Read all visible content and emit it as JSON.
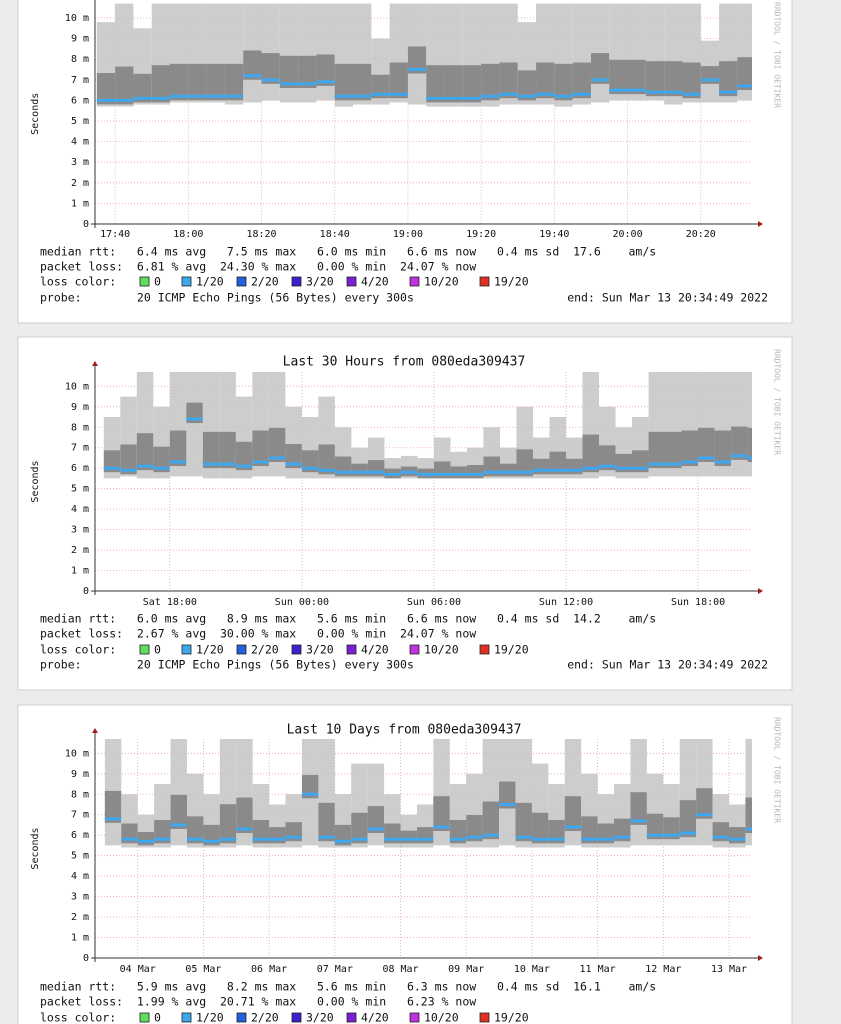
{
  "loss_legend": {
    "label": "loss color:",
    "items": [
      {
        "label": "0",
        "color": "#5ee05e"
      },
      {
        "label": "1/20",
        "color": "#3da8f0"
      },
      {
        "label": "2/20",
        "color": "#2060e0"
      },
      {
        "label": "3/20",
        "color": "#3a20d0"
      },
      {
        "label": "4/20",
        "color": "#7a20d0"
      },
      {
        "label": "10/20",
        "color": "#c030e0"
      },
      {
        "label": "19/20",
        "color": "#e03020"
      }
    ]
  },
  "graphs": [
    {
      "y_label": "Seconds",
      "watermark": "RRDTOOL / TOBI OETIKER",
      "median_color": "#3da8f0",
      "ylim": [
        0,
        10.7
      ],
      "yticks": [
        0,
        {
          "value": 1,
          "label": "1 m"
        },
        {
          "value": 2,
          "label": "2 m"
        },
        {
          "value": 3,
          "label": "3 m"
        },
        {
          "value": 4,
          "label": "4 m"
        },
        {
          "value": 5,
          "label": "5 m"
        },
        {
          "value": 6,
          "label": "6 m"
        },
        {
          "value": 7,
          "label": "7 m"
        },
        {
          "value": 8,
          "label": "8 m"
        },
        {
          "value": 9,
          "label": "9 m"
        },
        {
          "value": 10,
          "label": "10 m"
        }
      ],
      "xlim": [
        34.5,
        214
      ],
      "xticks": [
        {
          "value": 40,
          "label": "17:40"
        },
        {
          "value": 60,
          "label": "18:00"
        },
        {
          "value": 80,
          "label": "18:20"
        },
        {
          "value": 100,
          "label": "18:40"
        },
        {
          "value": 120,
          "label": "19:00"
        },
        {
          "value": 140,
          "label": "19:20"
        },
        {
          "value": 160,
          "label": "19:40"
        },
        {
          "value": 180,
          "label": "20:00"
        },
        {
          "value": 200,
          "label": "20:20"
        }
      ],
      "x": [
        35,
        40,
        45,
        50,
        55,
        60,
        65,
        70,
        75,
        80,
        85,
        90,
        95,
        100,
        105,
        110,
        115,
        120,
        125,
        130,
        135,
        140,
        145,
        150,
        155,
        160,
        165,
        170,
        175,
        180,
        185,
        190,
        195,
        200,
        205,
        210
      ],
      "median": [
        6.0,
        6.0,
        6.1,
        6.1,
        6.2,
        6.2,
        6.2,
        6.2,
        7.2,
        7.0,
        6.8,
        6.8,
        6.9,
        6.2,
        6.2,
        6.3,
        6.3,
        7.5,
        6.1,
        6.1,
        6.1,
        6.2,
        6.3,
        6.2,
        6.3,
        6.2,
        6.3,
        7.0,
        6.5,
        6.5,
        6.4,
        6.4,
        6.3,
        7.0,
        6.4,
        6.7
      ],
      "min": [
        5.7,
        5.7,
        5.8,
        5.8,
        5.9,
        5.9,
        5.9,
        5.8,
        5.9,
        6.0,
        5.9,
        5.9,
        6.0,
        5.7,
        5.8,
        5.8,
        5.9,
        5.8,
        5.7,
        5.7,
        5.7,
        5.7,
        5.8,
        5.8,
        5.8,
        5.7,
        5.8,
        5.9,
        6.0,
        6.0,
        6.0,
        5.8,
        5.9,
        5.9,
        5.9,
        6.0
      ],
      "max": [
        9.8,
        10.7,
        9.5,
        10.7,
        10.7,
        10.7,
        10.7,
        10.7,
        10.7,
        10.7,
        10.7,
        10.7,
        10.7,
        10.7,
        10.7,
        9.0,
        10.7,
        10.7,
        10.7,
        10.7,
        10.7,
        10.7,
        10.7,
        9.8,
        10.7,
        10.7,
        10.7,
        10.7,
        10.7,
        10.7,
        10.7,
        10.7,
        10.7,
        8.9,
        10.7,
        10.7
      ],
      "stats": [
        "median rtt:   6.4 ms avg   7.5 ms max   6.0 ms min   6.6 ms now   0.4 ms sd  17.6    am/s",
        "packet loss:  6.81 % avg  24.30 % max   0.00 % min  24.07 % now"
      ],
      "probe": "probe:        20 ICMP Echo Pings (56 Bytes) every 300s",
      "end": "end: Sun Mar 13 20:34:49 2022"
    },
    {
      "title": "Last 30 Hours from 080eda309437",
      "y_label": "Seconds",
      "watermark": "RRDTOOL / TOBI OETIKER",
      "median_color": "#3da8f0",
      "ylim": [
        0,
        10.7
      ],
      "yticks": [
        0,
        {
          "value": 1,
          "label": "1 m"
        },
        {
          "value": 2,
          "label": "2 m"
        },
        {
          "value": 3,
          "label": "3 m"
        },
        {
          "value": 4,
          "label": "4 m"
        },
        {
          "value": 5,
          "label": "5 m"
        },
        {
          "value": 6,
          "label": "6 m"
        },
        {
          "value": 7,
          "label": "7 m"
        },
        {
          "value": 8,
          "label": "8 m"
        },
        {
          "value": 9,
          "label": "9 m"
        },
        {
          "value": 10,
          "label": "10 m"
        }
      ],
      "xlim": [
        14.6,
        44.45
      ],
      "xticks": [
        {
          "value": 18,
          "label": "Sat 18:00"
        },
        {
          "value": 24,
          "label": "Sun 00:00"
        },
        {
          "value": 30,
          "label": "Sun 06:00"
        },
        {
          "value": 36,
          "label": "Sun 12:00"
        },
        {
          "value": 42,
          "label": "Sun 18:00"
        }
      ],
      "x": [
        15,
        15.75,
        16.5,
        17.25,
        18,
        18.75,
        19.5,
        20.25,
        21,
        21.75,
        22.5,
        23.25,
        24,
        24.75,
        25.5,
        26.25,
        27,
        27.75,
        28.5,
        29.25,
        30,
        30.75,
        31.5,
        32.25,
        33,
        33.75,
        34.5,
        35.25,
        36,
        36.75,
        37.5,
        38.25,
        39,
        39.75,
        40.5,
        41.25,
        42,
        42.75,
        43.5,
        44.25
      ],
      "median": [
        6.0,
        5.9,
        6.1,
        6.0,
        6.3,
        8.4,
        6.2,
        6.2,
        6.1,
        6.3,
        6.5,
        6.2,
        6.0,
        5.9,
        5.8,
        5.8,
        5.8,
        5.7,
        5.8,
        5.7,
        5.7,
        5.7,
        5.7,
        5.8,
        5.8,
        5.8,
        5.9,
        5.9,
        5.9,
        6.0,
        6.1,
        6.0,
        6.0,
        6.2,
        6.2,
        6.3,
        6.5,
        6.3,
        6.6,
        6.5
      ],
      "min": [
        5.5,
        5.6,
        5.5,
        5.5,
        5.6,
        5.6,
        5.5,
        5.5,
        5.5,
        5.6,
        5.6,
        5.5,
        5.5,
        5.5,
        5.5,
        5.5,
        5.5,
        5.5,
        5.5,
        5.5,
        5.5,
        5.5,
        5.5,
        5.5,
        5.5,
        5.5,
        5.5,
        5.5,
        5.5,
        5.5,
        5.6,
        5.5,
        5.5,
        5.6,
        5.6,
        5.6,
        5.6,
        5.6,
        5.6,
        5.6
      ],
      "max": [
        8.5,
        9.5,
        10.7,
        9.0,
        10.7,
        10.7,
        10.7,
        10.7,
        9.5,
        10.7,
        10.7,
        9.0,
        8.5,
        9.5,
        8.0,
        7.0,
        7.5,
        6.5,
        6.6,
        6.5,
        7.5,
        6.8,
        7.0,
        8.0,
        7.0,
        9.0,
        7.5,
        8.5,
        7.5,
        10.7,
        9.0,
        8.0,
        8.5,
        10.7,
        10.7,
        10.7,
        10.7,
        10.7,
        10.7,
        10.7
      ],
      "stats": [
        "median rtt:   6.0 ms avg   8.9 ms max   5.6 ms min   6.6 ms now   0.4 ms sd  14.2    am/s",
        "packet loss:  2.67 % avg  30.00 % max   0.00 % min  24.07 % now"
      ],
      "probe": "probe:        20 ICMP Echo Pings (56 Bytes) every 300s",
      "end": "end: Sun Mar 13 20:34:49 2022"
    },
    {
      "title": "Last 10 Days from 080eda309437",
      "y_label": "Seconds",
      "watermark": "RRDTOOL / TOBI OETIKER",
      "median_color": "#3da8f0",
      "ylim": [
        0,
        10.7
      ],
      "yticks": [
        0,
        {
          "value": 1,
          "label": "1 m"
        },
        {
          "value": 2,
          "label": "2 m"
        },
        {
          "value": 3,
          "label": "3 m"
        },
        {
          "value": 4,
          "label": "4 m"
        },
        {
          "value": 5,
          "label": "5 m"
        },
        {
          "value": 6,
          "label": "6 m"
        },
        {
          "value": 7,
          "label": "7 m"
        },
        {
          "value": 8,
          "label": "8 m"
        },
        {
          "value": 9,
          "label": "9 m"
        },
        {
          "value": 10,
          "label": "10 m"
        }
      ],
      "xlim": [
        3.85,
        13.85
      ],
      "xticks": [
        {
          "value": 4.5,
          "label": "04 Mar"
        },
        {
          "value": 5.5,
          "label": "05 Mar"
        },
        {
          "value": 6.5,
          "label": "06 Mar"
        },
        {
          "value": 7.5,
          "label": "07 Mar"
        },
        {
          "value": 8.5,
          "label": "08 Mar"
        },
        {
          "value": 9.5,
          "label": "09 Mar"
        },
        {
          "value": 10.5,
          "label": "10 Mar"
        },
        {
          "value": 11.5,
          "label": "11 Mar"
        },
        {
          "value": 12.5,
          "label": "12 Mar"
        },
        {
          "value": 13.5,
          "label": "13 Mar"
        }
      ],
      "x": [
        4,
        4.25,
        4.5,
        4.75,
        5,
        5.25,
        5.5,
        5.75,
        6,
        6.25,
        6.5,
        6.75,
        7,
        7.25,
        7.5,
        7.75,
        8,
        8.25,
        8.5,
        8.75,
        9,
        9.25,
        9.5,
        9.75,
        10,
        10.25,
        10.5,
        10.75,
        11,
        11.25,
        11.5,
        11.75,
        12,
        12.25,
        12.5,
        12.75,
        13,
        13.25,
        13.5,
        13.75
      ],
      "median": [
        6.8,
        5.8,
        5.7,
        5.8,
        6.5,
        5.8,
        5.7,
        5.8,
        6.3,
        5.8,
        5.8,
        5.9,
        8.0,
        5.9,
        5.7,
        5.8,
        6.3,
        5.8,
        5.8,
        5.8,
        6.4,
        5.8,
        5.9,
        6.0,
        7.5,
        5.9,
        5.8,
        5.8,
        6.4,
        5.8,
        5.8,
        5.9,
        6.7,
        6.0,
        6.0,
        6.1,
        7.0,
        5.9,
        5.8,
        6.3
      ],
      "min": [
        5.5,
        5.4,
        5.4,
        5.4,
        5.5,
        5.4,
        5.4,
        5.4,
        5.5,
        5.4,
        5.4,
        5.4,
        5.5,
        5.4,
        5.4,
        5.4,
        5.5,
        5.4,
        5.4,
        5.4,
        5.5,
        5.4,
        5.4,
        5.4,
        5.5,
        5.4,
        5.4,
        5.4,
        5.5,
        5.4,
        5.4,
        5.4,
        5.5,
        5.5,
        5.5,
        5.5,
        5.5,
        5.4,
        5.4,
        5.5
      ],
      "max": [
        10.7,
        8.0,
        7.0,
        8.5,
        10.7,
        9.0,
        8.0,
        10.7,
        10.7,
        8.5,
        7.5,
        8.0,
        10.7,
        10.7,
        8.0,
        9.5,
        9.5,
        8.0,
        7.0,
        7.5,
        10.7,
        8.5,
        9.0,
        10.7,
        10.7,
        10.7,
        9.5,
        8.5,
        10.7,
        9.0,
        8.0,
        8.5,
        10.7,
        9.0,
        8.5,
        10.7,
        10.7,
        8.0,
        7.5,
        10.7
      ],
      "stats": [
        "median rtt:   5.9 ms avg   8.2 ms max   5.6 ms min   6.3 ms now   0.4 ms sd  16.1    am/s",
        "packet loss:  1.99 % avg  20.71 % max   0.00 % min   6.23 % now"
      ]
    }
  ]
}
